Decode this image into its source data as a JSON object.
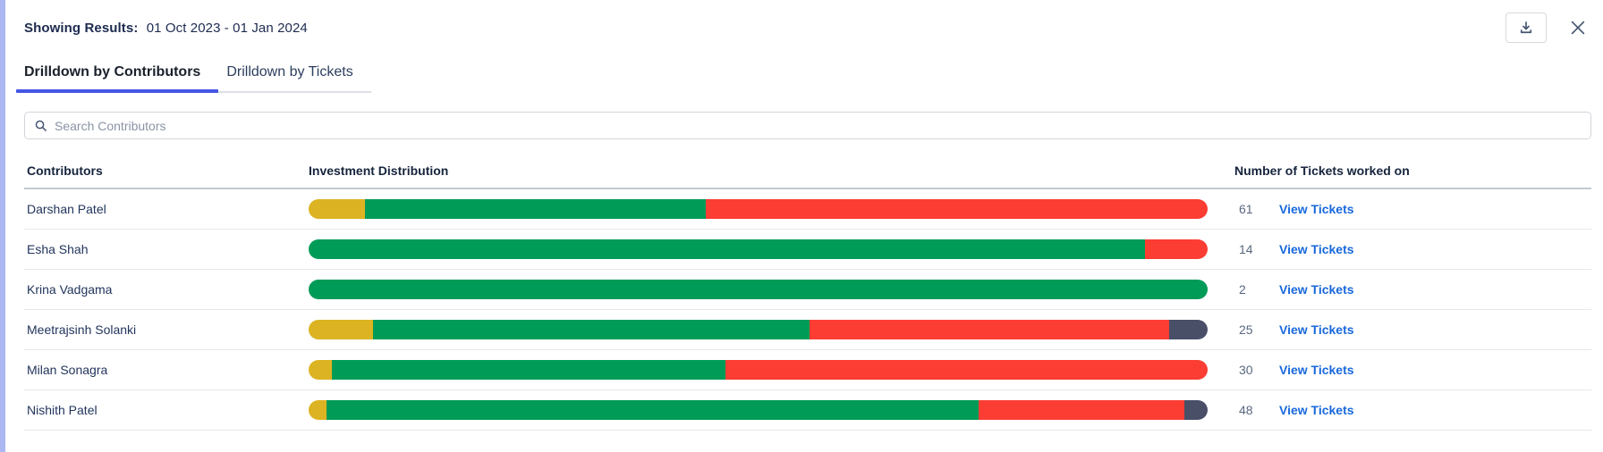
{
  "header": {
    "results_label": "Showing Results:",
    "results_value": "01 Oct 2023 - 01 Jan 2024"
  },
  "tabs": [
    {
      "label": "Drilldown by Contributors",
      "active": true
    },
    {
      "label": "Drilldown by Tickets",
      "active": false
    }
  ],
  "search": {
    "placeholder": "Search Contributors"
  },
  "table": {
    "columns": [
      "Contributors",
      "Investment Distribution",
      "Number of Tickets worked on"
    ],
    "link_label": "View Tickets",
    "rows": [
      {
        "name": "Darshan Patel",
        "tickets": "61",
        "segments": [
          {
            "type": "yellow",
            "pct": 6.3
          },
          {
            "type": "green",
            "pct": 37.9
          },
          {
            "type": "red",
            "pct": 55.8
          }
        ]
      },
      {
        "name": "Esha Shah",
        "tickets": "14",
        "segments": [
          {
            "type": "green",
            "pct": 93.0
          },
          {
            "type": "red",
            "pct": 7.0
          }
        ]
      },
      {
        "name": "Krina Vadgama",
        "tickets": "2",
        "segments": [
          {
            "type": "green",
            "pct": 100.0
          }
        ]
      },
      {
        "name": "Meetrajsinh Solanki",
        "tickets": "25",
        "segments": [
          {
            "type": "yellow",
            "pct": 7.2
          },
          {
            "type": "green",
            "pct": 48.5
          },
          {
            "type": "red",
            "pct": 40.0
          },
          {
            "type": "dark",
            "pct": 4.3
          }
        ]
      },
      {
        "name": "Milan Sonagra",
        "tickets": "30",
        "segments": [
          {
            "type": "yellow",
            "pct": 2.6
          },
          {
            "type": "green",
            "pct": 43.8
          },
          {
            "type": "red",
            "pct": 53.6
          }
        ]
      },
      {
        "name": "Nishith Patel",
        "tickets": "48",
        "segments": [
          {
            "type": "yellow",
            "pct": 2.0
          },
          {
            "type": "green",
            "pct": 72.5
          },
          {
            "type": "red",
            "pct": 22.9
          },
          {
            "type": "dark",
            "pct": 2.6
          }
        ]
      }
    ]
  },
  "colors": {
    "yellow": "#dcb322",
    "green": "#009b57",
    "red": "#fc3d33",
    "dark": "#4a4f68",
    "link_blue": "#1868db",
    "active_tab_underline": "#4556e3",
    "left_strip": "#abb7f0"
  },
  "icons": {
    "download": "download-icon",
    "close": "close-icon",
    "search": "search-icon"
  }
}
